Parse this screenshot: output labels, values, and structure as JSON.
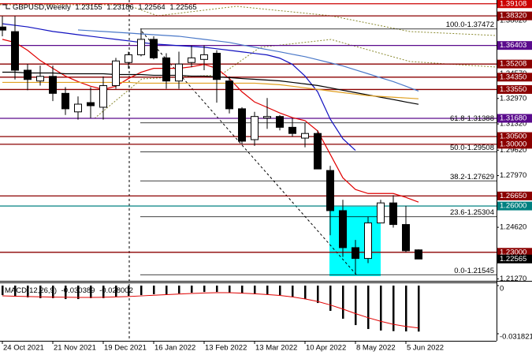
{
  "chart_data": [
    {
      "type": "candlestick",
      "title": "GBPUSD,Weekly",
      "categories": [
        "24 Oct 2021",
        null,
        null,
        null,
        "21 Nov 2021",
        null,
        null,
        null,
        "19 Dec 2021",
        null,
        null,
        null,
        "16 Jan 2022",
        null,
        null,
        null,
        "13 Feb 2022",
        null,
        null,
        null,
        "13 Mar 2022",
        null,
        null,
        null,
        "10 Apr 2022",
        null,
        null,
        null,
        "8 May 2022",
        null,
        null,
        null,
        "5 Jun 2022",
        null
      ],
      "open": [
        1.376,
        1.373,
        1.348,
        1.341,
        1.344,
        1.333,
        1.321,
        1.327,
        1.324,
        1.338,
        1.353,
        1.358,
        1.368,
        1.356,
        1.341,
        1.353,
        1.355,
        1.359,
        1.341,
        1.323,
        1.303,
        1.317,
        1.318,
        1.311,
        1.304,
        1.307,
        1.283,
        1.257,
        1.233,
        1.226,
        1.249,
        1.262,
        1.248,
        1.23155
      ],
      "high": [
        1.383,
        1.383,
        1.352,
        1.351,
        1.351,
        1.337,
        1.331,
        1.337,
        1.344,
        1.356,
        1.36,
        1.375,
        1.37,
        1.359,
        1.36,
        1.364,
        1.364,
        1.361,
        1.344,
        1.324,
        1.321,
        1.33,
        1.319,
        1.317,
        1.314,
        1.309,
        1.286,
        1.264,
        1.238,
        1.253,
        1.264,
        1.267,
        1.26,
        1.23186
      ],
      "low": [
        1.37,
        1.342,
        1.335,
        1.338,
        1.328,
        1.319,
        1.316,
        1.317,
        1.316,
        1.336,
        1.349,
        1.357,
        1.355,
        1.336,
        1.336,
        1.35,
        1.348,
        1.327,
        1.32,
        1.3,
        1.299,
        1.31,
        1.309,
        1.305,
        1.298,
        1.284,
        1.241,
        1.227,
        1.216,
        1.223,
        1.249,
        1.246,
        1.23,
        1.22564
      ],
      "close": [
        1.374,
        1.348,
        1.342,
        1.344,
        1.333,
        1.323,
        1.326,
        1.325,
        1.338,
        1.354,
        1.358,
        1.368,
        1.356,
        1.341,
        1.352,
        1.356,
        1.358,
        1.342,
        1.323,
        1.302,
        1.318,
        1.318,
        1.311,
        1.307,
        1.307,
        1.284,
        1.257,
        1.233,
        1.226,
        1.249,
        1.262,
        1.248,
        1.231,
        1.22565
      ],
      "up_color": "#ffffff",
      "down_color": "#000000",
      "wick_color": "#000000",
      "ylim": [
        1.212,
        1.3935
      ],
      "yticks": [
        {
          "value": 1.3802,
          "label": "1.38020"
        },
        {
          "value": 1.3457,
          "label": "1.34570"
        },
        {
          "value": 1.3297,
          "label": "1.32970"
        },
        {
          "value": 1.3132,
          "label": "1.31320"
        },
        {
          "value": 1.2962,
          "label": "1.29620"
        },
        {
          "value": 1.2797,
          "label": "1.27970"
        },
        {
          "value": 1.2462,
          "label": "1.24620"
        },
        {
          "value": 1.2127,
          "label": "1.21270"
        }
      ],
      "levels": [
        {
          "value": 1.39108,
          "label": "1.39108",
          "color": "#cc0000"
        },
        {
          "value": 1.3832,
          "label": "1.38320",
          "color": "#8b0000"
        },
        {
          "value": 1.36403,
          "label": "1.36403",
          "color": "#5a0a8c"
        },
        {
          "value": 1.352,
          "label": "1.35208",
          "color": "#8b0000"
        },
        {
          "value": 1.3435,
          "label": "1.34350",
          "color": "#8b0000"
        },
        {
          "value": 1.3355,
          "label": "1.33550",
          "color": "#8b0000"
        },
        {
          "value": 1.3168,
          "label": "1.31680",
          "color": "#5a0a8c"
        },
        {
          "value": 1.305,
          "label": "1.30500",
          "color": "#8b0000"
        },
        {
          "value": 1.3,
          "label": "1.30000",
          "color": "#8b0000"
        },
        {
          "value": 1.2665,
          "label": "1.26650",
          "color": "#8b0000"
        },
        {
          "value": 1.26,
          "label": "1.26000",
          "color": "#008080"
        },
        {
          "value": 1.23,
          "label": "1.23000",
          "color": "#8b0000"
        }
      ],
      "price_color": "#000000",
      "fib_levels": [
        {
          "value": 1.37472,
          "label": "100.0-1.37472"
        },
        {
          "value": 1.31388,
          "label": "61.8-1.31388"
        },
        {
          "value": 1.29508,
          "label": "50.0-1.29508"
        },
        {
          "value": 1.27629,
          "label": "38.2-1.27629"
        },
        {
          "value": 1.25304,
          "label": "23.6-1.25304"
        },
        {
          "value": 1.21545,
          "label": "0.0-1.21545"
        }
      ],
      "series": [
        {
          "color": "#e00000",
          "values": [
            1.368,
            1.366,
            1.3609,
            1.3543,
            1.3492,
            1.3442,
            1.3406,
            1.3376,
            1.3356,
            1.3376,
            1.3426,
            1.3467,
            1.3492,
            1.3492,
            1.3492,
            1.3502,
            1.3518,
            1.3492,
            1.3426,
            1.334,
            1.3274,
            1.3239,
            1.3203,
            1.3173,
            1.3153,
            1.3087,
            1.2935,
            1.2783,
            1.2707,
            1.2681,
            1.2681,
            1.2681,
            1.2656,
            1.2625
          ]
        },
        {
          "color": "#1010c0",
          "values": [
            1.3781,
            1.3771,
            1.3761,
            1.3746,
            1.3731,
            1.3721,
            1.371,
            1.37,
            1.369,
            1.368,
            1.367,
            1.366,
            1.365,
            1.3645,
            1.3639,
            1.3634,
            1.3629,
            1.3619,
            1.3609,
            1.3599,
            1.3589,
            1.3579,
            1.3558,
            1.3518,
            1.3442,
            1.334,
            1.3163,
            1.3036,
            1.296,
            null,
            null,
            null,
            null,
            null
          ]
        },
        {
          "color": "#4a78c8",
          "values": [
            null,
            null,
            null,
            null,
            null,
            null,
            1.3741,
            1.3736,
            1.3731,
            1.3726,
            1.3721,
            1.3715,
            1.371,
            1.3705,
            1.37,
            1.369,
            1.368,
            1.367,
            1.366,
            1.3644,
            1.3629,
            1.3614,
            1.3599,
            1.3583,
            1.3568,
            1.3548,
            1.3528,
            1.3508,
            1.3482,
            1.3457,
            1.3431,
            1.3406,
            1.3376,
            1.3345
          ]
        },
        {
          "color": "#000000",
          "values": [
            1.3467,
            1.3467,
            1.3462,
            1.3462,
            1.3462,
            1.3457,
            1.3457,
            1.3457,
            1.3457,
            1.3452,
            1.3452,
            1.3452,
            1.3447,
            1.3447,
            1.3447,
            1.3442,
            1.3442,
            1.3437,
            1.3432,
            1.3426,
            1.3421,
            1.3416,
            1.3411,
            1.3401,
            1.3391,
            1.3381,
            1.3366,
            1.335,
            1.3335,
            1.332,
            1.3305,
            1.329,
            1.3274,
            1.3259
          ]
        },
        {
          "color": "#e0a020",
          "values": [
            1.3401,
            1.3401,
            1.3401,
            1.3401,
            1.3401,
            1.3401,
            1.3401,
            1.3401,
            1.3401,
            1.3401,
            1.3401,
            1.3396,
            1.3396,
            1.3396,
            1.3396,
            1.3396,
            1.3396,
            1.3396,
            1.3396,
            1.3396,
            1.3396,
            1.3391,
            1.3386,
            1.3376,
            1.3366,
            1.3356,
            1.3345,
            1.3335,
            1.3325,
            1.3315,
            1.331,
            1.3305,
            1.33,
            1.3295
          ]
        }
      ]
    },
    {
      "type": "macd",
      "title": "MACD(12,26,9)",
      "color": "#000000",
      "values": [
        -0.0063,
        -0.0073,
        -0.0078,
        -0.0083,
        -0.0083,
        -0.0089,
        -0.0089,
        -0.0083,
        -0.0083,
        -0.0073,
        -0.0068,
        -0.0063,
        -0.0057,
        -0.0057,
        -0.0052,
        -0.0047,
        -0.0042,
        -0.0042,
        -0.0047,
        -0.0052,
        -0.0057,
        -0.0057,
        -0.0063,
        -0.0073,
        -0.0089,
        -0.0115,
        -0.0167,
        -0.0219,
        -0.0261,
        -0.0287,
        -0.0297,
        -0.0301,
        -0.0303,
        -0.030389
      ],
      "signal": {
        "color": "#e00000",
        "values": [
          -0.0068,
          -0.007,
          -0.0072,
          -0.0074,
          -0.0076,
          -0.0077,
          -0.0078,
          -0.0078,
          -0.0077,
          -0.0075,
          -0.0072,
          -0.0068,
          -0.0064,
          -0.006,
          -0.0056,
          -0.0052,
          -0.0049,
          -0.0047,
          -0.0047,
          -0.005,
          -0.0054,
          -0.0059,
          -0.0065,
          -0.0075,
          -0.0088,
          -0.0105,
          -0.0128,
          -0.0155,
          -0.0185,
          -0.0212,
          -0.0236,
          -0.0256,
          -0.027,
          -0.028002
        ]
      },
      "ylim": [
        -0.0365,
        0.0021
      ],
      "yticks": [
        0,
        -0.031821
      ]
    }
  ]
}
